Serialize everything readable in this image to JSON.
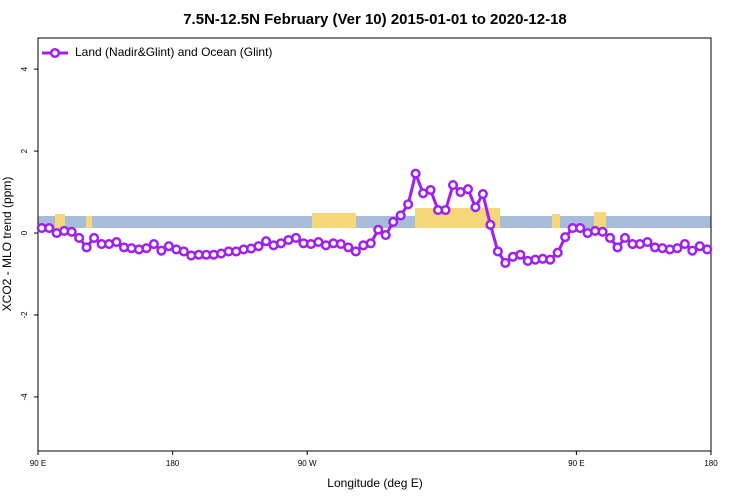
{
  "chart_data": {
    "type": "line",
    "title": "7.5N-12.5N February (Ver 10)   2015-01-01 to 2020-12-18",
    "xlabel": "Longitude (deg E)",
    "ylabel": "XCO2 - MLO trend (ppm)",
    "xlim": [
      90,
      540
    ],
    "ylim": [
      -5.32,
      4.76
    ],
    "xticks": [
      {
        "value": 90,
        "label": "90 E"
      },
      180,
      {
        "value": 270,
        "label": "90 W"
      },
      {
        "value": 450,
        "label": "90 E"
      },
      {
        "value": 540,
        "label": "180"
      }
    ],
    "yticks": [
      -4,
      -2,
      0,
      2,
      4
    ],
    "legend": "top-left",
    "x": [
      92.5,
      97.5,
      102.5,
      107.5,
      112.5,
      117.5,
      122.5,
      127.5,
      132.5,
      137.5,
      142.5,
      147.5,
      152.5,
      157.5,
      162.5,
      167.5,
      172.5,
      177.5,
      182.5,
      187.5,
      192.5,
      197.5,
      202.5,
      207.5,
      212.5,
      217.5,
      222.5,
      227.5,
      232.5,
      237.5,
      242.5,
      247.5,
      252.5,
      257.5,
      262.5,
      267.5,
      272.5,
      277.5,
      282.5,
      287.5,
      292.5,
      297.5,
      302.5,
      307.5,
      312.5,
      317.5,
      322.5,
      327.5,
      332.5,
      337.5,
      342.5,
      347.5,
      352.5,
      357.5,
      362.5,
      367.5,
      372.5,
      377.5,
      382.5,
      387.5,
      392.5,
      397.5,
      402.5,
      407.5,
      412.5,
      417.5,
      422.5,
      427.5,
      432.5,
      437.5,
      442.5,
      447.5,
      452.5,
      457.5,
      462.5,
      467.5,
      472.5,
      477.5,
      482.5,
      487.5,
      492.5,
      497.5,
      502.5,
      507.5,
      512.5,
      517.5,
      522.5,
      527.5,
      532.5,
      537.5
    ],
    "series": [
      {
        "name": "Land (Nadir&Glint) and Ocean (Glint)",
        "color": "#a020f0",
        "values": [
          0.12,
          0.12,
          0.0,
          0.05,
          0.03,
          -0.12,
          -0.35,
          -0.12,
          -0.27,
          -0.27,
          -0.22,
          -0.35,
          -0.37,
          -0.4,
          -0.37,
          -0.27,
          -0.43,
          -0.32,
          -0.4,
          -0.45,
          -0.55,
          -0.53,
          -0.53,
          -0.53,
          -0.5,
          -0.45,
          -0.45,
          -0.4,
          -0.38,
          -0.32,
          -0.2,
          -0.3,
          -0.25,
          -0.17,
          -0.12,
          -0.25,
          -0.27,
          -0.22,
          -0.3,
          -0.25,
          -0.27,
          -0.35,
          -0.45,
          -0.3,
          -0.25,
          0.08,
          -0.05,
          0.27,
          0.43,
          0.7,
          1.45,
          0.97,
          1.05,
          0.56,
          0.56,
          1.17,
          1.0,
          1.07,
          0.63,
          0.95,
          0.2,
          -0.45,
          -0.73,
          -0.58,
          -0.53,
          -0.68,
          -0.65,
          -0.63,
          -0.65,
          -0.48,
          -0.1,
          0.12,
          0.12,
          0.0,
          0.05,
          0.03,
          -0.12,
          -0.35,
          -0.12,
          -0.27,
          -0.27,
          -0.22,
          -0.35,
          -0.37,
          -0.4,
          -0.37,
          -0.27,
          -0.43,
          -0.32,
          -0.4
        ]
      }
    ]
  }
}
